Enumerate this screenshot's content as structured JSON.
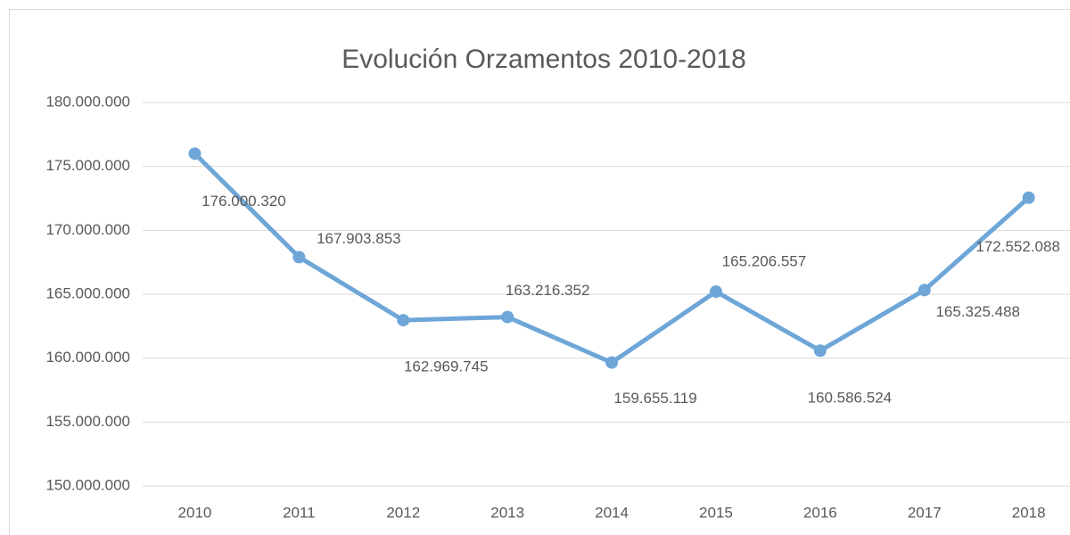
{
  "chart_data": {
    "type": "line",
    "title": "Evolución Orzamentos 2010-2018",
    "categories": [
      "2010",
      "2011",
      "2012",
      "2013",
      "2014",
      "2015",
      "2016",
      "2017",
      "2018"
    ],
    "series": [
      {
        "name": "Orzamentos",
        "color": "#6ea6d8",
        "values": [
          176000320,
          167903853,
          162969745,
          163216352,
          159655119,
          165206557,
          160586524,
          165325488,
          172552088
        ],
        "value_labels": [
          "176.000.320",
          "167.903.853",
          "162.969.745",
          "163.216.352",
          "159.655.119",
          "165.206.557",
          "160.586.524",
          "165.325.488",
          "172.552.088"
        ]
      }
    ],
    "ylim": [
      150000000,
      180000000
    ],
    "yticks": [
      {
        "value": 150000000,
        "label": "150.000.000"
      },
      {
        "value": 155000000,
        "label": "155.000.000"
      },
      {
        "value": 160000000,
        "label": "160.000.000"
      },
      {
        "value": 165000000,
        "label": "165.000.000"
      },
      {
        "value": 170000000,
        "label": "170.000.000"
      },
      {
        "value": 175000000,
        "label": "175.000.000"
      },
      {
        "value": 180000000,
        "label": "180.000.000"
      }
    ],
    "grid": true
  }
}
